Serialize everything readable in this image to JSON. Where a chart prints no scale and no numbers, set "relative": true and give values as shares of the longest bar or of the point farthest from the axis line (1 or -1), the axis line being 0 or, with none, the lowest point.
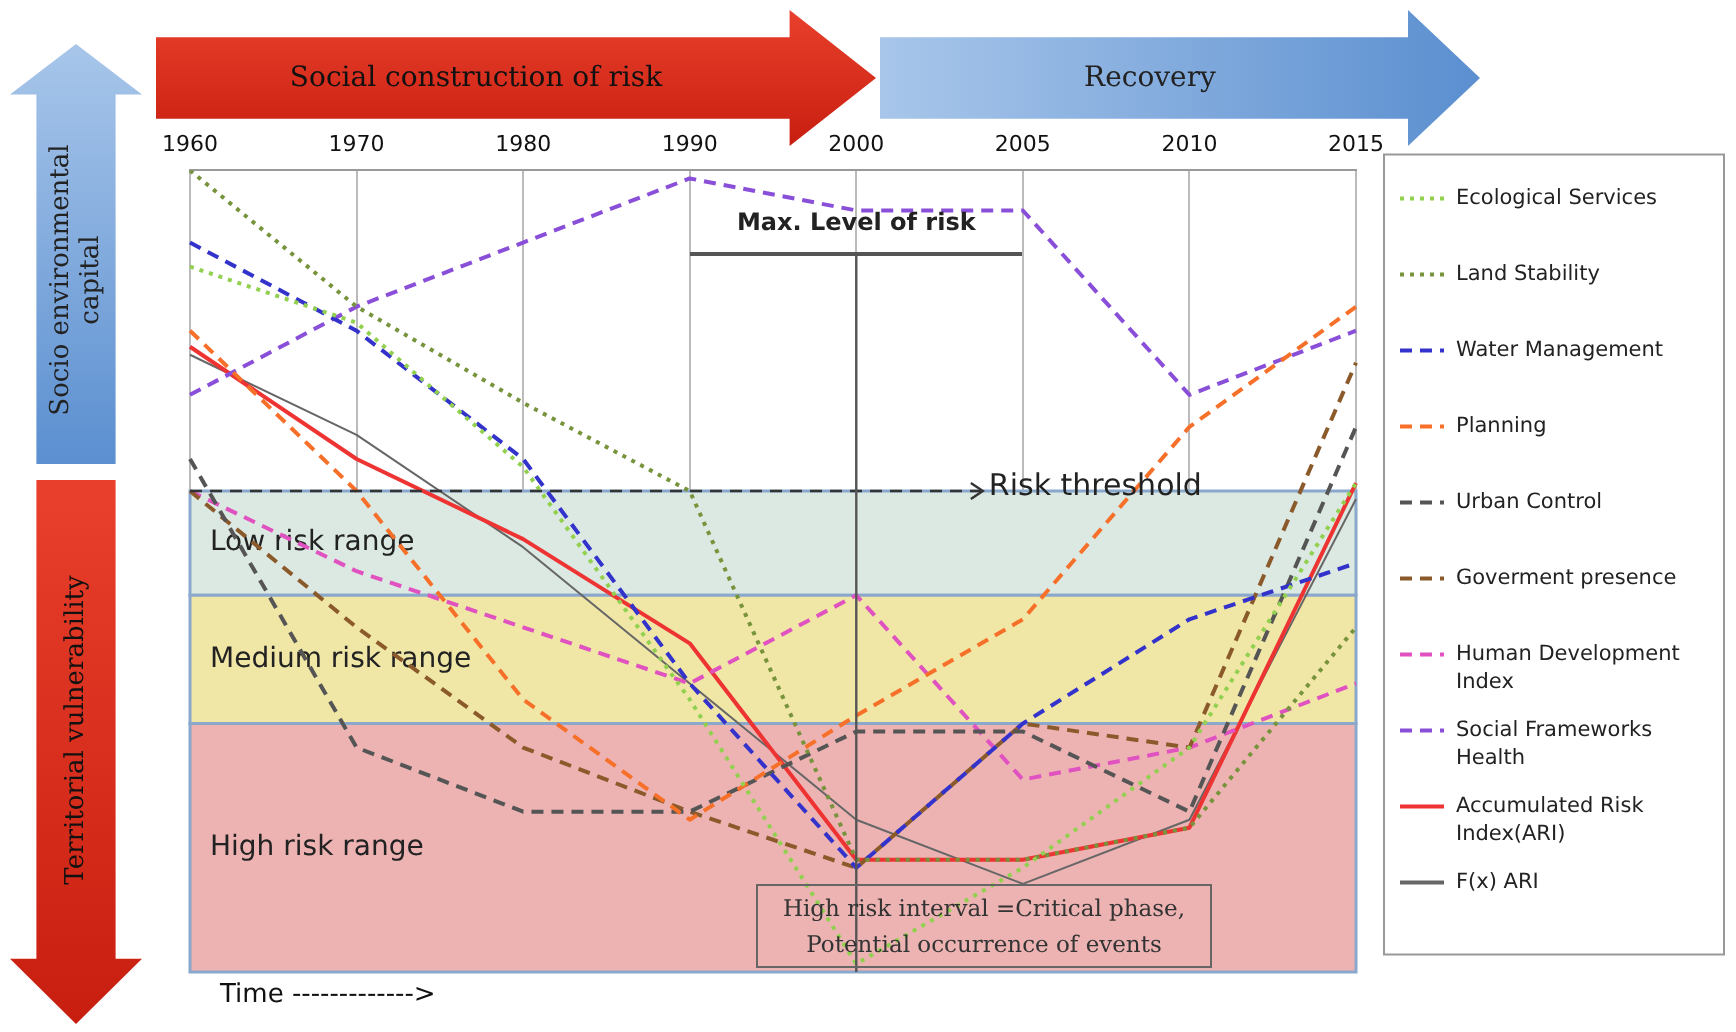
{
  "chart_data": {
    "type": "line",
    "relative": true,
    "xlabel": "Time ------------->",
    "categories": [
      "1960",
      "1970",
      "1980",
      "1990",
      "2000",
      "2005",
      "2010",
      "2015"
    ],
    "series": [
      {
        "name": "Ecological Services",
        "color": "#92d050",
        "line_style": "dotted",
        "values": [
          0.88,
          0.81,
          0.63,
          0.34,
          0.01,
          0.13,
          0.28,
          0.61
        ]
      },
      {
        "name": "Land Stability",
        "color": "#77933c",
        "line_style": "dotted",
        "values": [
          1.0,
          0.83,
          0.71,
          0.6,
          0.14,
          0.14,
          0.18,
          0.43
        ]
      },
      {
        "name": "Water Management",
        "color": "#3333cc",
        "line_style": "dashed",
        "values": [
          0.91,
          0.8,
          0.64,
          0.36,
          0.13,
          0.31,
          0.44,
          0.51
        ]
      },
      {
        "name": "Planning",
        "color": "#f7702a",
        "line_style": "dashed",
        "values": [
          0.8,
          0.6,
          0.34,
          0.19,
          0.32,
          0.44,
          0.68,
          0.83
        ]
      },
      {
        "name": "Urban Control",
        "color": "#555555",
        "line_style": "dashed",
        "values": [
          0.64,
          0.28,
          0.2,
          0.2,
          0.3,
          0.3,
          0.2,
          0.68
        ]
      },
      {
        "name": "Goverment presence",
        "color": "#8b5a2b",
        "line_style": "dashed",
        "values": [
          0.6,
          0.43,
          0.28,
          0.2,
          0.13,
          0.31,
          0.28,
          0.76
        ]
      },
      {
        "name": "Human Development Index",
        "color": "#e052c0",
        "line_style": "dashed",
        "values": [
          0.6,
          0.5,
          0.43,
          0.36,
          0.47,
          0.24,
          0.28,
          0.36
        ]
      },
      {
        "name": "Social Frameworks Health",
        "color": "#8a4fd8",
        "line_style": "dashed",
        "values": [
          0.72,
          0.83,
          0.91,
          0.99,
          0.95,
          0.95,
          0.72,
          0.8
        ]
      },
      {
        "name": "Accumulated Risk Index(ARI)",
        "color": "#ee3333",
        "line_style": "solid",
        "values": [
          0.78,
          0.64,
          0.54,
          0.41,
          0.14,
          0.14,
          0.18,
          0.61
        ]
      },
      {
        "name": "F(x) ARI",
        "color": "#666666",
        "line_style": "solid",
        "values": [
          0.77,
          0.67,
          0.53,
          0.36,
          0.19,
          0.11,
          0.19,
          0.59
        ]
      }
    ],
    "bands": [
      {
        "axis": "y",
        "from": 0.47,
        "to": 0.6,
        "label": "Low risk range",
        "color": "#dce9e2"
      },
      {
        "axis": "y",
        "from": 0.31,
        "to": 0.47,
        "label": "Medium risk range",
        "color": "#f0e6a6"
      },
      {
        "axis": "y",
        "from": 0,
        "to": 0.31,
        "label": "High risk range",
        "color": "#edb3b3"
      }
    ],
    "ref_lines": [
      {
        "axis": "y",
        "value": 0.6,
        "label": "Risk threshold",
        "color": "#333333",
        "line_style": "dashed"
      },
      {
        "axis": "x",
        "value": "2000",
        "label": "Max. Level of risk",
        "color": "#555555",
        "line_style": "solid"
      }
    ],
    "annotations": [
      "Social construction of risk",
      "Recovery",
      "Socio environmental capital",
      "Territorial vulnerability",
      "High risk interval =Critical phase, Potential occurrence of events"
    ],
    "grid": "x",
    "marker": "none",
    "legend": "right"
  }
}
